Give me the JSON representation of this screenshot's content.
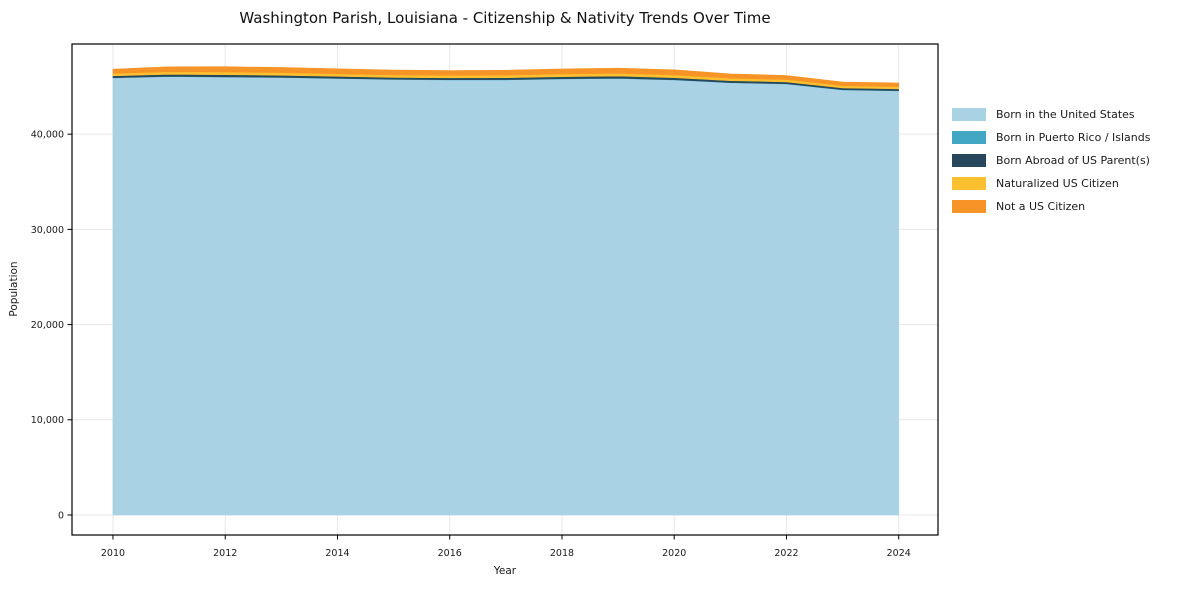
{
  "title": "Washington Parish, Louisiana - Citizenship & Nativity Trends Over Time",
  "chart_data": {
    "type": "area",
    "stacked": true,
    "title": "Washington Parish, Louisiana - Citizenship & Nativity Trends Over Time",
    "xlabel": "Year",
    "ylabel": "Population",
    "x": [
      2010,
      2011,
      2012,
      2013,
      2014,
      2015,
      2016,
      2017,
      2018,
      2019,
      2020,
      2021,
      2022,
      2023,
      2024
    ],
    "series": [
      {
        "name": "Born in the United States",
        "color": "#a9d2e4",
        "values": [
          45900,
          46050,
          46000,
          45950,
          45850,
          45750,
          45700,
          45700,
          45800,
          45850,
          45700,
          45400,
          45280,
          44650,
          44550
        ]
      },
      {
        "name": "Born in Puerto Rico / Islands",
        "color": "#41a7c2",
        "values": [
          30,
          30,
          25,
          25,
          20,
          20,
          25,
          30,
          30,
          25,
          25,
          20,
          20,
          25,
          25
        ]
      },
      {
        "name": "Born Abroad of US Parent(s)",
        "color": "#27485c",
        "values": [
          200,
          210,
          220,
          210,
          200,
          190,
          190,
          200,
          210,
          220,
          210,
          200,
          190,
          180,
          180
        ]
      },
      {
        "name": "Naturalized US Citizen",
        "color": "#fcc02f",
        "values": [
          250,
          270,
          290,
          280,
          270,
          260,
          260,
          270,
          280,
          290,
          280,
          260,
          250,
          240,
          240
        ]
      },
      {
        "name": "Not a US Citizen",
        "color": "#f79428",
        "values": [
          450,
          520,
          550,
          540,
          530,
          510,
          500,
          510,
          530,
          550,
          540,
          450,
          420,
          380,
          380
        ]
      }
    ],
    "xticks": [
      2010,
      2012,
      2014,
      2016,
      2018,
      2020,
      2022,
      2024
    ],
    "yticks": [
      0,
      10000,
      20000,
      30000,
      40000
    ],
    "xlim": [
      2009.27,
      2024.7
    ],
    "ylim": [
      -2100,
      49470
    ],
    "grid": true,
    "legend_position": "right",
    "styles": {
      "grid_color": "#e7e7e7",
      "spine_color": "#000000",
      "tick_color": "#000000",
      "tick_label_color": "#1a1a1a"
    }
  }
}
